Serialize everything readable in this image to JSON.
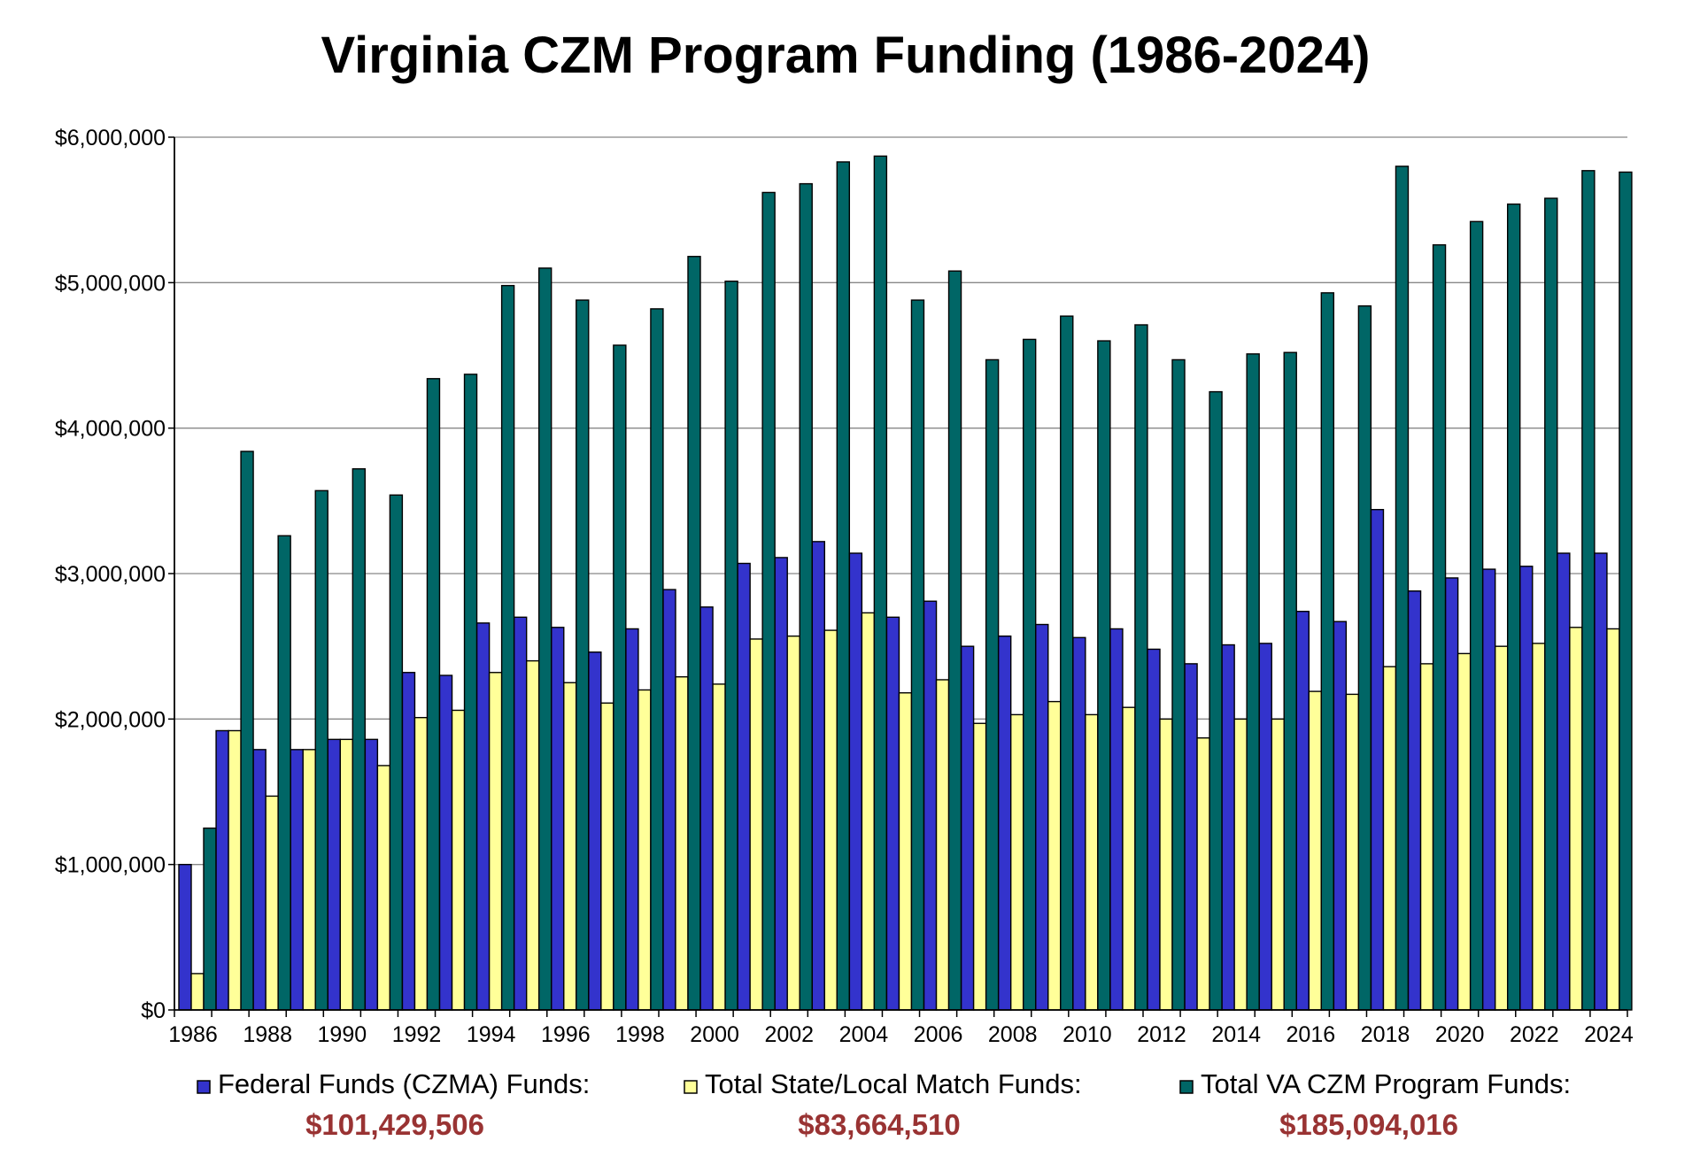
{
  "chart_data": {
    "type": "bar",
    "title": "Virginia CZM Program Funding (1986-2024)",
    "xlabel": "",
    "ylabel": "",
    "ylim": [
      0,
      6000000
    ],
    "ytick_values": [
      0,
      1000000,
      2000000,
      3000000,
      4000000,
      5000000,
      6000000
    ],
    "ytick_labels": [
      "$0",
      "$1,000,000",
      "$2,000,000",
      "$3,000,000",
      "$4,000,000",
      "$5,000,000",
      "$6,000,000"
    ],
    "grid": "horizontal",
    "legend_position": "bottom",
    "categories": [
      "1986",
      "1987",
      "1988",
      "1989",
      "1990",
      "1991",
      "1992",
      "1993",
      "1994",
      "1995",
      "1996",
      "1997",
      "1998",
      "1999",
      "2000",
      "2001",
      "2002",
      "2003",
      "2004",
      "2005",
      "2006",
      "2007",
      "2008",
      "2009",
      "2010",
      "2011",
      "2012",
      "2013",
      "2014",
      "2015",
      "2016",
      "2017",
      "2018",
      "2019",
      "2020",
      "2021",
      "2022",
      "2023",
      "2024"
    ],
    "xtick_labels": [
      "1986",
      "1988",
      "1990",
      "1992",
      "1994",
      "1996",
      "1998",
      "2000",
      "2002",
      "2004",
      "2006",
      "2008",
      "2010",
      "2012",
      "2014",
      "2016",
      "2018",
      "2020",
      "2022",
      "2024"
    ],
    "series": [
      {
        "name": "Federal Funds (CZMA) Funds:",
        "total": "$101,429,506",
        "color": "#3333cc",
        "values": [
          1000000,
          1920000,
          1790000,
          1790000,
          1860000,
          1860000,
          2320000,
          2300000,
          2660000,
          2700000,
          2630000,
          2460000,
          2620000,
          2890000,
          2770000,
          3070000,
          3110000,
          3220000,
          3140000,
          2700000,
          2810000,
          2500000,
          2570000,
          2650000,
          2560000,
          2620000,
          2480000,
          2380000,
          2510000,
          2520000,
          2740000,
          2670000,
          3440000,
          2880000,
          2970000,
          3030000,
          3050000,
          3140000,
          3140000
        ]
      },
      {
        "name": "Total State/Local Match Funds:",
        "total": "$83,664,510",
        "color": "#ffff99",
        "values": [
          250000,
          1920000,
          1470000,
          1790000,
          1860000,
          1680000,
          2010000,
          2060000,
          2320000,
          2400000,
          2250000,
          2110000,
          2200000,
          2290000,
          2240000,
          2550000,
          2570000,
          2610000,
          2730000,
          2180000,
          2270000,
          1970000,
          2030000,
          2120000,
          2030000,
          2080000,
          2000000,
          1870000,
          2000000,
          2000000,
          2190000,
          2170000,
          2360000,
          2380000,
          2450000,
          2500000,
          2520000,
          2630000,
          2620000
        ]
      },
      {
        "name": "Total VA CZM Program Funds:",
        "total": "$185,094,016",
        "color": "#006666",
        "values": [
          1250000,
          3840000,
          3260000,
          3570000,
          3720000,
          3540000,
          4340000,
          4370000,
          4980000,
          5100000,
          4880000,
          4570000,
          4820000,
          5180000,
          5010000,
          5620000,
          5680000,
          5830000,
          5870000,
          4880000,
          5080000,
          4470000,
          4610000,
          4770000,
          4600000,
          4710000,
          4470000,
          4250000,
          4510000,
          4520000,
          4930000,
          4840000,
          5800000,
          5260000,
          5420000,
          5540000,
          5580000,
          5770000,
          5760000
        ]
      }
    ],
    "total_color": "#993333"
  }
}
